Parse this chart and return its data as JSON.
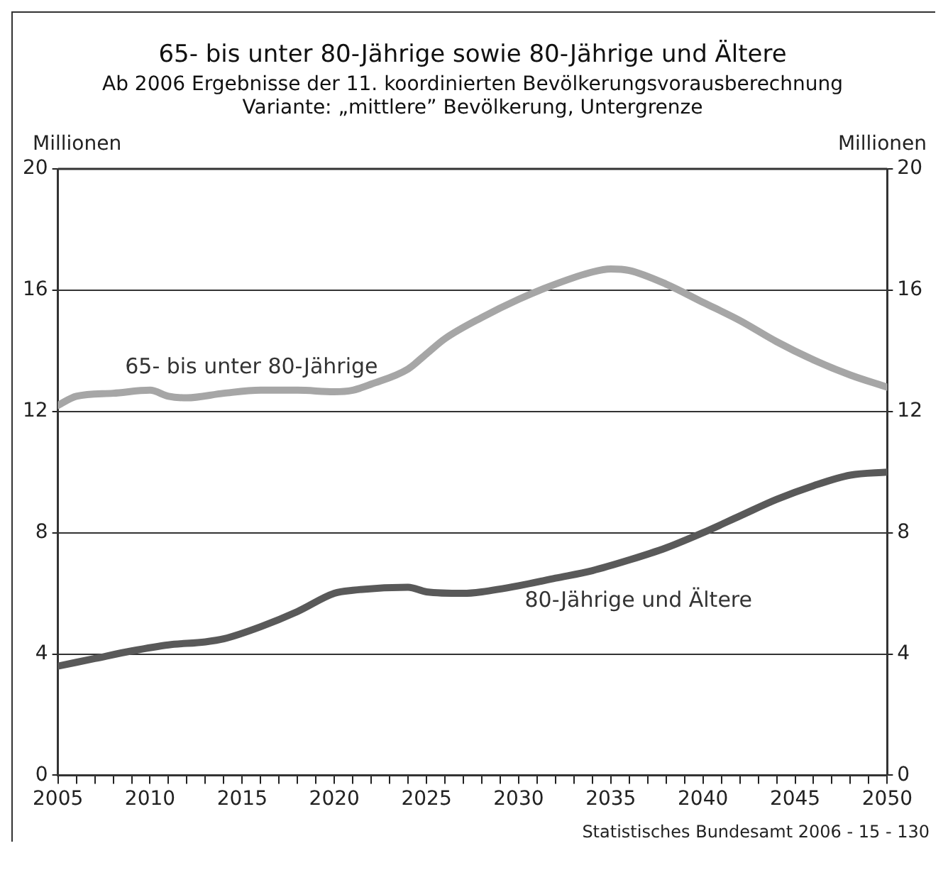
{
  "chart_data": {
    "type": "line",
    "title": "65- bis unter 80-Jährige sowie 80-Jährige und Ältere",
    "subtitle": "Ab 2006 Ergebnisse der 11. koordinierten Bevölkerungsvorausberechnung\nVariante: „mittlere” Bevölkerung, Untergrenze",
    "ylabel": "Millionen",
    "y2label": "Millionen",
    "series": [
      {
        "name": "65- bis unter 80-Jährige",
        "color": "#a6a6a6",
        "x": [
          2005,
          2006,
          2008,
          2010,
          2011,
          2012,
          2014,
          2016,
          2018,
          2020,
          2021,
          2022,
          2024,
          2025,
          2026,
          2028,
          2030,
          2032,
          2034,
          2035,
          2036,
          2038,
          2040,
          2042,
          2044,
          2046,
          2048,
          2050
        ],
        "values": [
          12.2,
          12.5,
          12.6,
          12.7,
          12.5,
          12.45,
          12.6,
          12.7,
          12.7,
          12.65,
          12.7,
          12.9,
          13.4,
          13.9,
          14.4,
          15.1,
          15.7,
          16.2,
          16.6,
          16.7,
          16.65,
          16.2,
          15.6,
          15.0,
          14.3,
          13.7,
          13.2,
          12.8
        ]
      },
      {
        "name": "80-Jährige und Ältere",
        "color": "#595959",
        "x": [
          2005,
          2007,
          2009,
          2011,
          2013,
          2014,
          2016,
          2018,
          2020,
          2021,
          2024,
          2025,
          2027,
          2028,
          2030,
          2032,
          2034,
          2036,
          2038,
          2040,
          2042,
          2044,
          2046,
          2048,
          2050
        ],
        "values": [
          3.6,
          3.85,
          4.1,
          4.3,
          4.4,
          4.5,
          4.9,
          5.4,
          6.0,
          6.1,
          6.2,
          6.05,
          6.0,
          6.05,
          6.25,
          6.5,
          6.75,
          7.1,
          7.5,
          8.0,
          8.55,
          9.1,
          9.55,
          9.9,
          10.0
        ]
      }
    ],
    "xlim": [
      2005,
      2050
    ],
    "xticks": [
      2005,
      {
        "value": 2006,
        "label": null
      },
      {
        "value": 2007,
        "label": null
      },
      {
        "value": 2008,
        "label": null
      },
      {
        "value": 2009,
        "label": null
      },
      2010,
      {
        "value": 2011,
        "label": null
      },
      {
        "value": 2012,
        "label": null
      },
      {
        "value": 2013,
        "label": null
      },
      {
        "value": 2014,
        "label": null
      },
      2015,
      {
        "value": 2016,
        "label": null
      },
      {
        "value": 2017,
        "label": null
      },
      {
        "value": 2018,
        "label": null
      },
      {
        "value": 2019,
        "label": null
      },
      2020,
      {
        "value": 2021,
        "label": null
      },
      {
        "value": 2022,
        "label": null
      },
      {
        "value": 2023,
        "label": null
      },
      {
        "value": 2024,
        "label": null
      },
      2025,
      {
        "value": 2026,
        "label": null
      },
      {
        "value": 2027,
        "label": null
      },
      {
        "value": 2028,
        "label": null
      },
      {
        "value": 2029,
        "label": null
      },
      2030,
      {
        "value": 2031,
        "label": null
      },
      {
        "value": 2032,
        "label": null
      },
      {
        "value": 2033,
        "label": null
      },
      {
        "value": 2034,
        "label": null
      },
      2035,
      {
        "value": 2036,
        "label": null
      },
      {
        "value": 2037,
        "label": null
      },
      {
        "value": 2038,
        "label": null
      },
      {
        "value": 2039,
        "label": null
      },
      2040,
      {
        "value": 2041,
        "label": null
      },
      {
        "value": 2042,
        "label": null
      },
      {
        "value": 2043,
        "label": null
      },
      {
        "value": 2044,
        "label": null
      },
      2045,
      {
        "value": 2046,
        "label": null
      },
      {
        "value": 2047,
        "label": null
      },
      {
        "value": 2048,
        "label": null
      },
      {
        "value": 2049,
        "label": null
      },
      2050
    ],
    "ylim": [
      0,
      20
    ],
    "yticks": [
      0,
      4,
      8,
      12,
      16,
      20
    ],
    "y2lim": [
      0,
      20
    ],
    "y2ticks": [
      0,
      4,
      8,
      12,
      16,
      20
    ],
    "grid": "y",
    "legend": false,
    "marker": "none",
    "line_style": "solid",
    "annotations": [
      "Statistisches Bundesamt 2006 - 15 - 130"
    ]
  }
}
